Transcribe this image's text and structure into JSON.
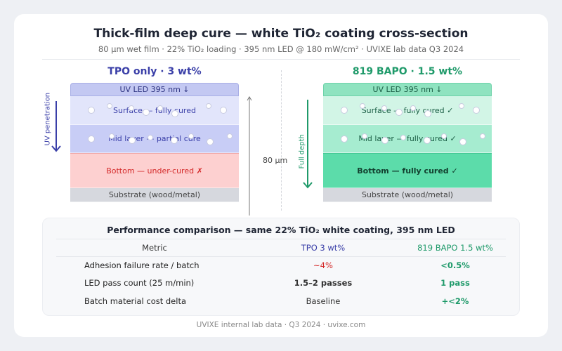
{
  "header": {
    "title": "Thick-film deep cure — white TiO₂ coating cross-section",
    "subtitle": "80 µm wet film · 22% TiO₂ loading · 395 nm LED @ 180 mW/cm² · UVIXE lab data Q3 2024"
  },
  "left": {
    "title": "TPO only · 3 wt%",
    "color": "#3a3fa8",
    "led": "UV LED 395 nm ↓",
    "surface": "Surface — fully cured",
    "mid": "Mid layer — partial cure",
    "bottom": "Bottom — under-cured ✗",
    "substrate": "Substrate (wood/metal)",
    "arrow_label": "UV penetration"
  },
  "right": {
    "title": "819 BAPO · 1.5 wt%",
    "color": "#1f9a6a",
    "led": "UV LED 395 nm ↓",
    "surface": "Surface — fully cured ✓",
    "mid": "Mid layer — fully cured ✓",
    "bottom": "Bottom — fully cured ✓",
    "substrate": "Substrate (wood/metal)",
    "arrow_label": "Full depth"
  },
  "thickness_label": "80 µm",
  "table": {
    "title": "Performance comparison — same 22% TiO₂ white coating, 395 nm LED",
    "headers": [
      "Metric",
      "TPO 3 wt%",
      "819 BAPO 1.5 wt%"
    ],
    "rows": [
      [
        "Adhesion failure rate / batch",
        "~4%",
        "<0.5%"
      ],
      [
        "LED pass count (25 m/min)",
        "1.5–2 passes",
        "1 pass"
      ],
      [
        "Batch material cost delta",
        "Baseline",
        "+<2%"
      ]
    ]
  },
  "footer": "UVIXE internal lab data · Q3 2024 · uvixe.com"
}
